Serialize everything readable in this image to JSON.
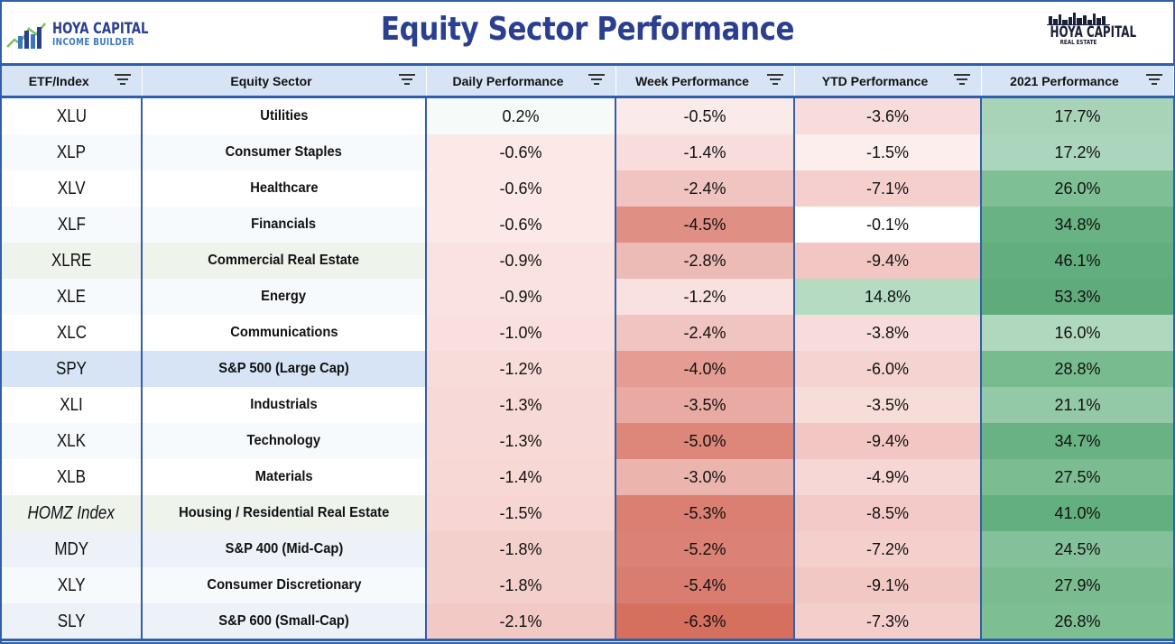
{
  "header": {
    "title": "Equity Sector Performance",
    "left_logo": {
      "line1": "HOYA CAPITAL",
      "line2": "INCOME BUILDER",
      "icon": "house-chart-icon"
    },
    "right_logo": {
      "line1": "HOYA CAPITAL",
      "line2": "REAL ESTATE",
      "icon": "skyline-icon"
    }
  },
  "colors": {
    "accent": "#2f5faa",
    "title": "#2a3f8f",
    "header_bg": "#d6e4f5"
  },
  "columns": [
    "ETF/Index",
    "Equity Sector",
    "Daily Performance",
    "Week Performance",
    "YTD Performance",
    "2021 Performance"
  ],
  "rows": [
    {
      "ticker": "XLU",
      "sector": "Utilities",
      "daily": "0.2%",
      "week": "-0.5%",
      "ytd": "-3.6%",
      "y2021": "17.7%",
      "tkbg": "#ffffff",
      "secbg": "#ffffff",
      "dbg": "#f6fbfa",
      "wbg": "#fbeaea",
      "ybg": "#f7dcdb",
      "zbg": "#a8d3b9"
    },
    {
      "ticker": "XLP",
      "sector": "Consumer Staples",
      "daily": "-0.6%",
      "week": "-1.4%",
      "ytd": "-1.5%",
      "y2021": "17.2%",
      "tkbg": "#f7fafd",
      "secbg": "#f7fafd",
      "dbg": "#fbe8e7",
      "wbg": "#f8dddc",
      "ybg": "#fbeeed",
      "zbg": "#abd5bc"
    },
    {
      "ticker": "XLV",
      "sector": "Healthcare",
      "daily": "-0.6%",
      "week": "-2.4%",
      "ytd": "-7.1%",
      "y2021": "26.0%",
      "tkbg": "#ffffff",
      "secbg": "#ffffff",
      "dbg": "#fbe8e7",
      "wbg": "#f0c4c0",
      "ybg": "#f4cfcd",
      "zbg": "#7fbf95"
    },
    {
      "ticker": "XLF",
      "sector": "Financials",
      "daily": "-0.6%",
      "week": "-4.5%",
      "ytd": "-0.1%",
      "y2021": "34.8%",
      "tkbg": "#f7fafd",
      "secbg": "#f7fafd",
      "dbg": "#fbe8e7",
      "wbg": "#e08f84",
      "ybg": "#ffffff",
      "zbg": "#68b283"
    },
    {
      "ticker": "XLRE",
      "sector": "Commercial Real Estate",
      "daily": "-0.9%",
      "week": "-2.8%",
      "ytd": "-9.4%",
      "y2021": "46.1%",
      "tkbg": "#eef3ec",
      "secbg": "#eef3ec",
      "dbg": "#f9e2e0",
      "wbg": "#edbbb5",
      "ybg": "#f2c7c3",
      "zbg": "#63ae7e"
    },
    {
      "ticker": "XLE",
      "sector": "Energy",
      "daily": "-0.9%",
      "week": "-1.2%",
      "ytd": "14.8%",
      "y2021": "53.3%",
      "tkbg": "#f7fafd",
      "secbg": "#f7fafd",
      "dbg": "#f9e2e0",
      "wbg": "#f9e1df",
      "ybg": "#b5dbc3",
      "zbg": "#5fab7b"
    },
    {
      "ticker": "XLC",
      "sector": "Communications",
      "daily": "-1.0%",
      "week": "-2.4%",
      "ytd": "-3.8%",
      "y2021": "16.0%",
      "tkbg": "#ffffff",
      "secbg": "#ffffff",
      "dbg": "#f9e0de",
      "wbg": "#f0c4c0",
      "ybg": "#f7dcdb",
      "zbg": "#b0d8bf"
    },
    {
      "ticker": "SPY",
      "sector": "S&P 500 (Large Cap)",
      "daily": "-1.2%",
      "week": "-4.0%",
      "ytd": "-6.0%",
      "y2021": "28.8%",
      "tkbg": "#d6e4f5",
      "secbg": "#d6e4f5",
      "dbg": "#f8dcd9",
      "wbg": "#e49c93",
      "ybg": "#f5d3d1",
      "zbg": "#78bb8f"
    },
    {
      "ticker": "XLI",
      "sector": "Industrials",
      "daily": "-1.3%",
      "week": "-3.5%",
      "ytd": "-3.5%",
      "y2021": "21.1%",
      "tkbg": "#ffffff",
      "secbg": "#ffffff",
      "dbg": "#f7dad7",
      "wbg": "#e8aaa2",
      "ybg": "#f7ddda",
      "zbg": "#93c9a6"
    },
    {
      "ticker": "XLK",
      "sector": "Technology",
      "daily": "-1.3%",
      "week": "-5.0%",
      "ytd": "-9.4%",
      "y2021": "34.7%",
      "tkbg": "#f7fafd",
      "secbg": "#f7fafd",
      "dbg": "#f7dad7",
      "wbg": "#dd867a",
      "ybg": "#f2c7c3",
      "zbg": "#68b283"
    },
    {
      "ticker": "XLB",
      "sector": "Materials",
      "daily": "-1.4%",
      "week": "-3.0%",
      "ytd": "-4.9%",
      "y2021": "27.5%",
      "tkbg": "#ffffff",
      "secbg": "#ffffff",
      "dbg": "#f7d8d5",
      "wbg": "#ebb5ae",
      "ybg": "#f6d7d5",
      "zbg": "#7bbd91"
    },
    {
      "ticker": "HOMZ Index",
      "sector": "Housing / Residential Real Estate",
      "daily": "-1.5%",
      "week": "-5.3%",
      "ytd": "-8.5%",
      "y2021": "41.0%",
      "tkbg": "#eef3ec",
      "secbg": "#eef3ec",
      "dbg": "#f6d5d2",
      "wbg": "#da7f72",
      "ybg": "#f3cac7",
      "zbg": "#64af7f",
      "italic": true
    },
    {
      "ticker": "MDY",
      "sector": "S&P 400 (Mid-Cap)",
      "daily": "-1.8%",
      "week": "-5.2%",
      "ytd": "-7.2%",
      "y2021": "24.5%",
      "tkbg": "#edf2f8",
      "secbg": "#edf2f8",
      "dbg": "#f4d0cc",
      "wbg": "#db8175",
      "ybg": "#f4cfcc",
      "zbg": "#84c19a"
    },
    {
      "ticker": "XLY",
      "sector": "Consumer Discretionary",
      "daily": "-1.8%",
      "week": "-5.4%",
      "ytd": "-9.1%",
      "y2021": "27.9%",
      "tkbg": "#f7fafd",
      "secbg": "#f7fafd",
      "dbg": "#f4d0cc",
      "wbg": "#d97d70",
      "ybg": "#f2c8c4",
      "zbg": "#7abc90"
    },
    {
      "ticker": "SLY",
      "sector": "S&P 600 (Small-Cap)",
      "daily": "-2.1%",
      "week": "-6.3%",
      "ytd": "-7.3%",
      "y2021": "26.8%",
      "tkbg": "#edf2f8",
      "secbg": "#edf2f8",
      "dbg": "#f2c9c5",
      "wbg": "#d5705f",
      "ybg": "#f4cecb",
      "zbg": "#7dbe93"
    }
  ]
}
